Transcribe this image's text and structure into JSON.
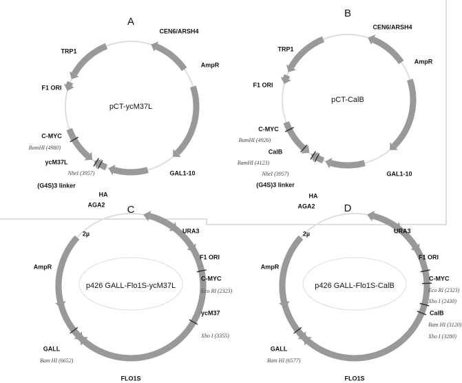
{
  "panels": [
    {
      "letter": "A",
      "name": "pCT-ycM37L",
      "features": [
        "CEN6/ARSH4",
        "AmpR",
        "TRP1",
        "F1 ORI",
        "C-MYC",
        "ycM37L",
        "GAL1-10",
        "(G4S)3 linker",
        "HA",
        "AGA2"
      ],
      "sites": [
        "BamHI (4980)",
        "NheI (3957)"
      ]
    },
    {
      "letter": "B",
      "name": "pCT-CalB",
      "features": [
        "CEN6/ARSH4",
        "AmpR",
        "TRP1",
        "F1 ORI",
        "C-MYC",
        "CalB",
        "GAL1-10",
        "(G4S)3 linker",
        "HA",
        "AGA2"
      ],
      "sites": [
        "BamHI (4926)",
        "BamHI (4123)",
        "NheI (3957)"
      ]
    },
    {
      "letter": "C",
      "name": "p426 GALL-Flo1S-ycM37L",
      "features": [
        "2µ",
        "URA3",
        "F1 ORI",
        "AmpR",
        "C-MYC",
        "ycM37",
        "GALL",
        "FLO1S"
      ],
      "sites": [
        "Eco RI (2323)",
        "Xho I (3355)",
        "Bam HI (6652)"
      ]
    },
    {
      "letter": "D",
      "name": "p426 GALL-Flo1S-CalB",
      "features": [
        "2µ",
        "URA3",
        "F1 ORI",
        "AmpR",
        "C-MYC",
        "CalB",
        "GALL",
        "FLO1S"
      ],
      "sites": [
        "Eco RI (2323)",
        "Xho I (2430)",
        "Bam HI (3120)",
        "Xho I (3280)",
        "Bam HI (6577)"
      ]
    }
  ]
}
